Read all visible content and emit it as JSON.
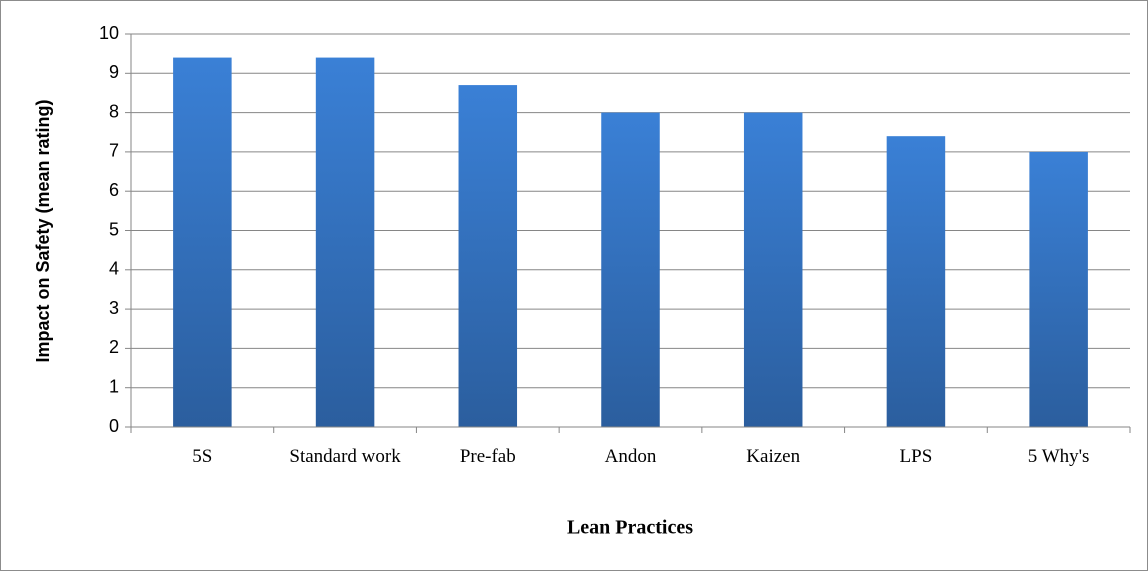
{
  "chart_data": {
    "type": "bar",
    "categories": [
      "5S",
      "Standard work",
      "Pre-fab",
      "Andon",
      "Kaizen",
      "LPS",
      "5 Why's"
    ],
    "values": [
      9.4,
      9.4,
      8.7,
      8.0,
      8.0,
      7.4,
      7.0
    ],
    "color": "#3a7bd0",
    "ylim": [
      0,
      10
    ],
    "yticks": [
      0,
      1,
      2,
      3,
      4,
      5,
      6,
      7,
      8,
      9,
      10
    ],
    "grid": true,
    "xlabel": "Lean Practices",
    "ylabel": "Impact on Safety (mean rating)"
  }
}
